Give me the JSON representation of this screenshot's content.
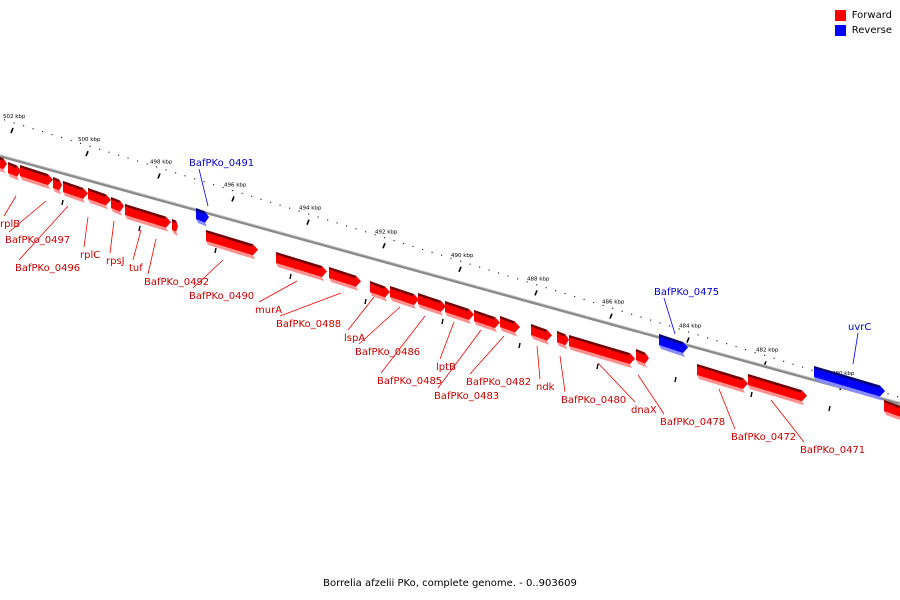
{
  "legend": {
    "forward_label": "Forward",
    "reverse_label": "Reverse",
    "forward_color": "#ff0000",
    "reverse_color": "#0000ff"
  },
  "caption": "Borrelia afzelii PKo, complete genome. - 0..903609",
  "scale_labels": [
    "502 kbp",
    "500 kbp",
    "498 kbp",
    "496 kbp",
    "494 kbp",
    "492 kbp",
    "490 kbp",
    "488 kbp",
    "486 kbp",
    "484 kbp",
    "482 kbp",
    "480 kbp"
  ],
  "genes": [
    {
      "name": "rplB",
      "strand": "forward"
    },
    {
      "name": "BafPKo_0497",
      "strand": "forward"
    },
    {
      "name": "BafPKo_0496",
      "strand": "forward"
    },
    {
      "name": "rplC",
      "strand": "forward"
    },
    {
      "name": "rpsJ",
      "strand": "forward"
    },
    {
      "name": "tuf",
      "strand": "forward"
    },
    {
      "name": "BafPKo_0492",
      "strand": "forward"
    },
    {
      "name": "BafPKo_0491",
      "strand": "reverse"
    },
    {
      "name": "BafPKo_0490",
      "strand": "forward"
    },
    {
      "name": "murA",
      "strand": "forward"
    },
    {
      "name": "BafPKo_0488",
      "strand": "forward"
    },
    {
      "name": "lspA",
      "strand": "forward"
    },
    {
      "name": "BafPKo_0486",
      "strand": "forward"
    },
    {
      "name": "BafPKo_0485",
      "strand": "forward"
    },
    {
      "name": "lptB",
      "strand": "forward"
    },
    {
      "name": "BafPKo_0483",
      "strand": "forward"
    },
    {
      "name": "BafPKo_0482",
      "strand": "forward"
    },
    {
      "name": "ndk",
      "strand": "forward"
    },
    {
      "name": "BafPKo_0480",
      "strand": "forward"
    },
    {
      "name": "dnaX",
      "strand": "forward"
    },
    {
      "name": "BafPKo_0478",
      "strand": "forward"
    },
    {
      "name": "BafPKo_0475",
      "strand": "reverse"
    },
    {
      "name": "BafPKo_0472",
      "strand": "forward"
    },
    {
      "name": "BafPKo_0471",
      "strand": "forward"
    },
    {
      "name": "uvrC",
      "strand": "reverse"
    }
  ]
}
